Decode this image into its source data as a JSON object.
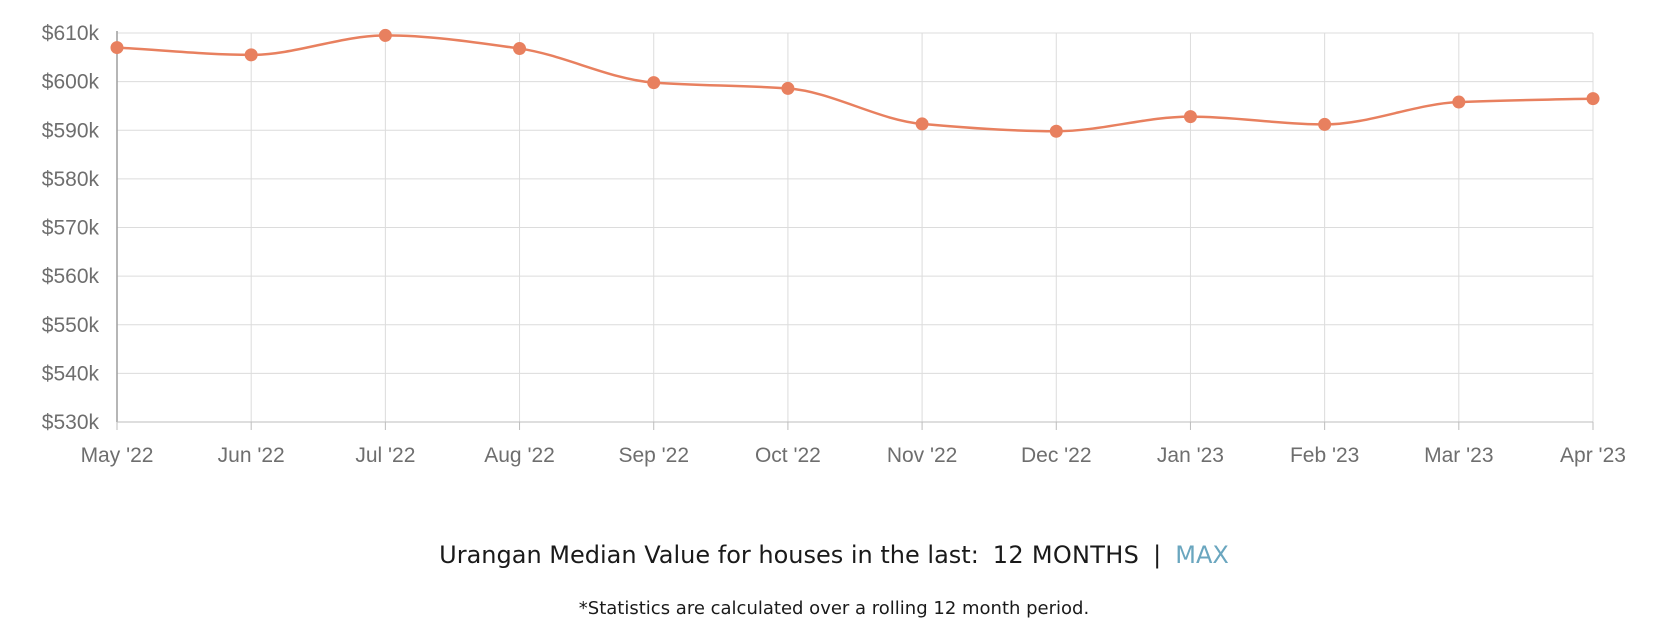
{
  "chart_data": {
    "type": "line",
    "categories": [
      "May '22",
      "Jun '22",
      "Jul '22",
      "Aug '22",
      "Sep '22",
      "Oct '22",
      "Nov '22",
      "Dec '22",
      "Jan '23",
      "Feb '23",
      "Mar '23",
      "Apr '23"
    ],
    "values": [
      607000,
      605500,
      609500,
      606800,
      599800,
      598600,
      591300,
      589800,
      592800,
      591200,
      595800,
      596500
    ],
    "y_ticks": [
      530000,
      540000,
      550000,
      560000,
      570000,
      580000,
      590000,
      600000,
      610000
    ],
    "y_tick_labels": [
      "$530k",
      "$540k",
      "$550k",
      "$560k",
      "$570k",
      "$580k",
      "$590k",
      "$600k",
      "$610k"
    ],
    "ylim": [
      530000,
      610000
    ],
    "grid": true,
    "line_color": "#e8805f",
    "grid_color": "#dcdcdc",
    "title": "",
    "xlabel": "",
    "ylabel": ""
  },
  "footer": {
    "caption": "Urangan Median Value for houses in the last:",
    "range_active": "12 MONTHS",
    "separator": "|",
    "range_link": "MAX",
    "note": "*Statistics are calculated over a rolling 12 month period."
  }
}
